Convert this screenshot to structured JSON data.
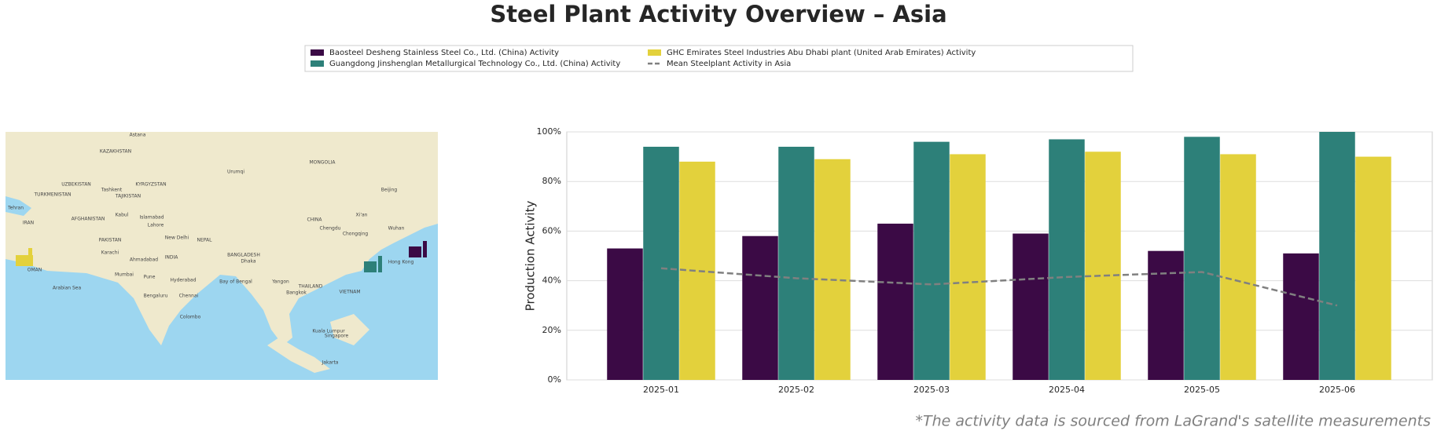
{
  "chart_data": {
    "type": "bar",
    "title": "Steel Plant Activity Overview – Asia",
    "ylabel": "Production Activity",
    "categories": [
      "2025-01",
      "2025-02",
      "2025-03",
      "2025-04",
      "2025-05",
      "2025-06"
    ],
    "series": [
      {
        "name": "Baosteel Desheng Stainless Steel Co., Ltd. (China) Activity",
        "color": "#3b0a45",
        "values": [
          53,
          58,
          63,
          59,
          52,
          51
        ]
      },
      {
        "name": "Guangdong Jinshenglan Metallurgical Technology Co., Ltd. (China) Activity",
        "color": "#2d8079",
        "values": [
          94,
          94,
          96,
          97,
          98,
          100
        ]
      },
      {
        "name": "GHC Emirates Steel Industries Abu Dhabi plant (United Arab Emirates) Activity",
        "color": "#e3d13c",
        "values": [
          88,
          89,
          91,
          92,
          91,
          90
        ]
      },
      {
        "name": "Mean Steelplant Activity in Asia",
        "type": "line",
        "color": "#808080",
        "values": [
          45,
          41,
          38.5,
          41.5,
          43.5,
          30
        ]
      }
    ],
    "ylim": [
      0,
      100
    ],
    "yticks": [
      {
        "value": 0,
        "label": "0%"
      },
      {
        "value": 20,
        "label": "20%"
      },
      {
        "value": 40,
        "label": "40%"
      },
      {
        "value": 60,
        "label": "60%"
      },
      {
        "value": 80,
        "label": "80%"
      },
      {
        "value": 100,
        "label": "100%"
      }
    ],
    "grid": true,
    "legend": "upper center",
    "footnote": "*The activity data is sourced from LaGrand's satellite measurements"
  },
  "map": {
    "labels": [
      "Astana",
      "KAZAKHSTAN",
      "MONGOLIA",
      "UZBEKISTAN",
      "KYRGYZSTAN",
      "Tashkent",
      "TURKMENISTAN",
      "TAJIKISTAN",
      "Urumqi",
      "Beijing",
      "Tehran",
      "IRAN",
      "AFGHANISTAN",
      "Kabul",
      "Islamabad",
      "Lahore",
      "PAKISTAN",
      "New Delhi",
      "NEPAL",
      "CHINA",
      "Xi'an",
      "Chengdu",
      "Chongqing",
      "Wuhan",
      "Karachi",
      "Ahmadabad",
      "INDIA",
      "BANGLADESH",
      "Dhaka",
      "Mumbai",
      "Pune",
      "Hyderabad",
      "Bengaluru",
      "Chennai",
      "Colombo",
      "Arabian Sea",
      "Bay of Bengal",
      "Yangon",
      "Bangkok",
      "THAILAND",
      "VIETNAM",
      "Hong Kong",
      "Kuala Lumpur",
      "Singapore",
      "Jakarta",
      "OMAN"
    ]
  }
}
